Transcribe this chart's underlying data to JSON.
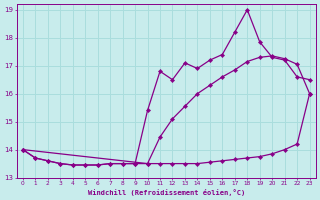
{
  "xlabel": "Windchill (Refroidissement éolien,°C)",
  "bg_color": "#c8ecec",
  "line_color": "#880088",
  "grid_color": "#aadddd",
  "xlim": [
    -0.5,
    23.5
  ],
  "ylim": [
    13,
    19.2
  ],
  "xticks": [
    0,
    1,
    2,
    3,
    4,
    5,
    6,
    7,
    8,
    9,
    10,
    11,
    12,
    13,
    14,
    15,
    16,
    17,
    18,
    19,
    20,
    21,
    22,
    23
  ],
  "yticks": [
    13,
    14,
    15,
    16,
    17,
    18,
    19
  ],
  "s1_x": [
    0,
    1,
    2,
    3,
    4,
    5,
    6,
    7,
    8,
    9,
    10,
    11,
    12,
    13,
    14,
    15,
    16,
    17,
    18,
    19,
    20,
    21,
    22,
    23
  ],
  "s1_y": [
    14.0,
    13.7,
    13.6,
    13.5,
    13.45,
    13.45,
    13.45,
    13.5,
    13.5,
    13.5,
    13.5,
    13.5,
    13.5,
    13.5,
    13.5,
    13.55,
    13.6,
    13.65,
    13.7,
    13.75,
    13.85,
    14.0,
    14.2,
    16.0
  ],
  "s2_x": [
    0,
    1,
    2,
    3,
    4,
    5,
    6,
    7,
    8,
    9,
    10,
    11,
    12,
    13,
    14,
    15,
    16,
    17,
    18,
    19,
    20,
    21,
    22,
    23
  ],
  "s2_y": [
    14.0,
    13.7,
    13.6,
    13.5,
    13.45,
    13.45,
    13.45,
    13.5,
    13.5,
    13.5,
    15.4,
    16.8,
    16.5,
    17.1,
    16.9,
    17.2,
    17.4,
    18.2,
    19.0,
    17.85,
    17.3,
    17.2,
    16.6,
    16.5
  ],
  "s3_x": [
    0,
    10,
    11,
    12,
    13,
    14,
    15,
    16,
    17,
    18,
    19,
    20,
    21,
    22,
    23
  ],
  "s3_y": [
    14.0,
    13.5,
    14.45,
    15.1,
    15.55,
    16.0,
    16.3,
    16.6,
    16.85,
    17.15,
    17.3,
    17.35,
    17.25,
    17.05,
    16.0
  ]
}
